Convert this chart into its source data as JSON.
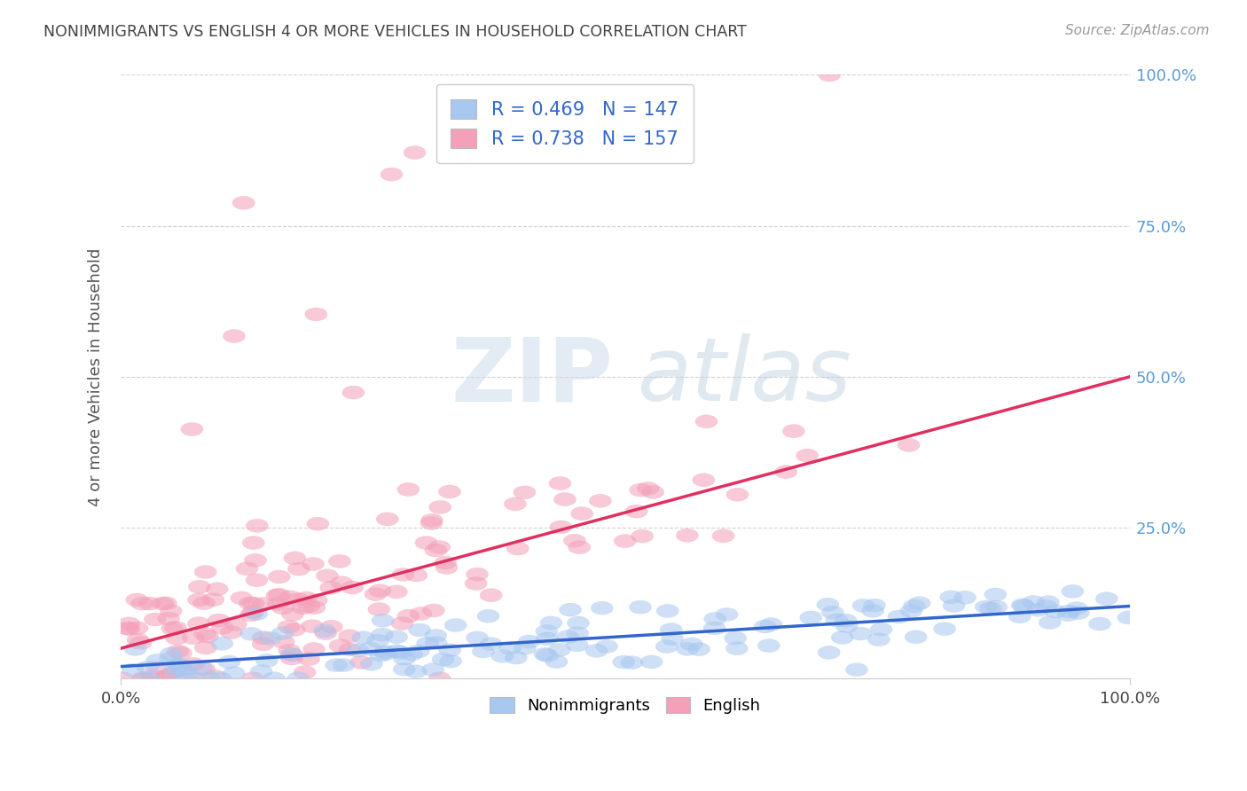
{
  "title": "NONIMMIGRANTS VS ENGLISH 4 OR MORE VEHICLES IN HOUSEHOLD CORRELATION CHART",
  "source": "Source: ZipAtlas.com",
  "ylabel": "4 or more Vehicles in Household",
  "blue_R": 0.469,
  "blue_N": 147,
  "pink_R": 0.738,
  "pink_N": 157,
  "blue_color": "#a8c8f0",
  "pink_color": "#f4a0b8",
  "blue_line_color": "#3366cc",
  "pink_line_color": "#e03060",
  "watermark_zip_color": "#ccddf0",
  "watermark_atlas_color": "#b8ccdd",
  "background_color": "#ffffff",
  "grid_color": "#cccccc",
  "legend_label_blue": "Nonimmigrants",
  "legend_label_pink": "English",
  "axis_tick_color": "#5b9bd5",
  "title_color": "#444444",
  "source_color": "#999999",
  "blue_line_intercept": 0.02,
  "blue_line_slope": 0.1,
  "pink_line_intercept": 0.05,
  "pink_line_slope": 0.45
}
